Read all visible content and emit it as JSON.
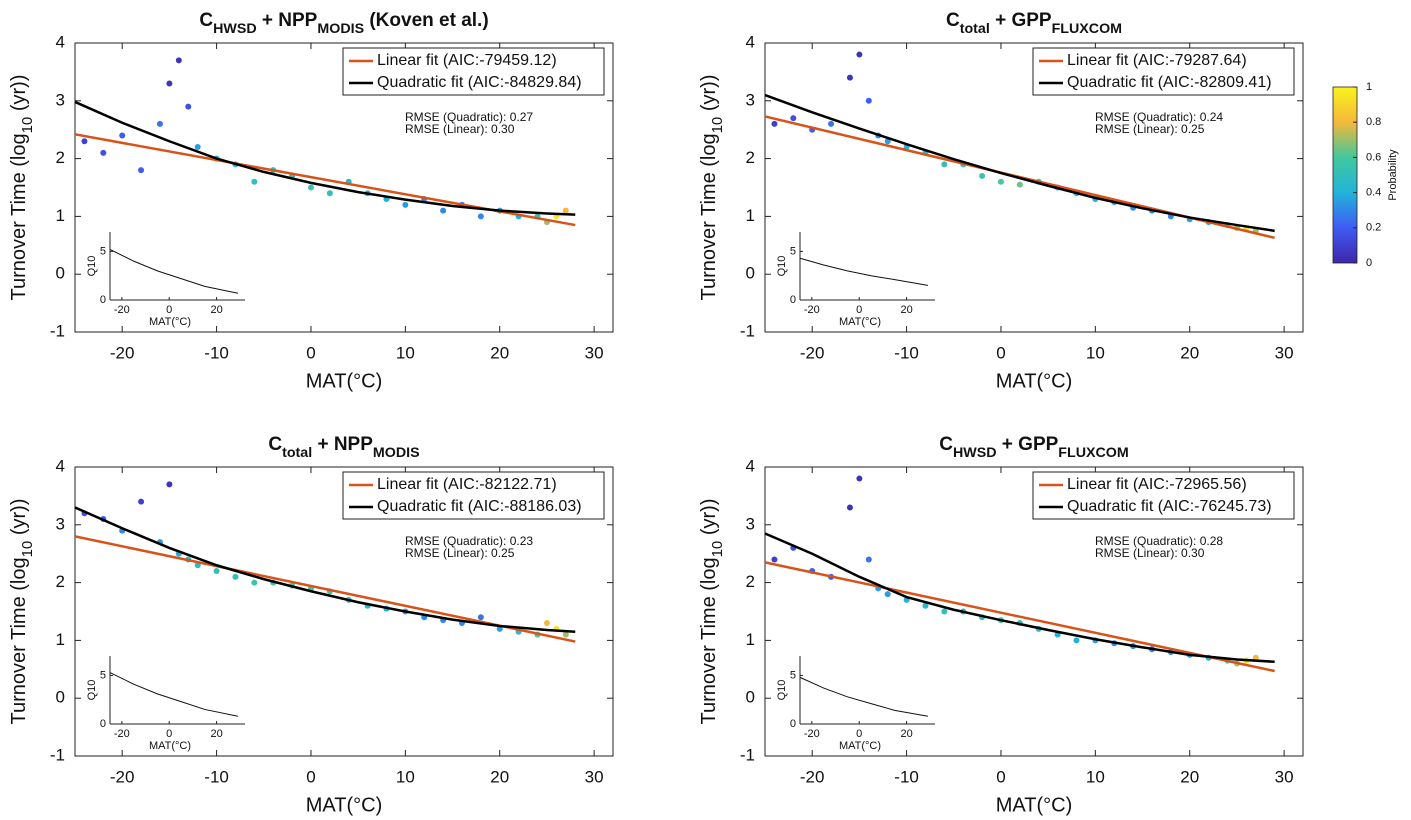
{
  "chart_data": [
    {
      "type": "scatter",
      "title": [
        {
          "text": "C"
        },
        {
          "text": "HWSD",
          "sub": true
        },
        {
          "text": " + NPP"
        },
        {
          "text": "MODIS",
          "sub": true
        },
        {
          "text": " (Koven et al.)"
        }
      ],
      "xlabel": "MAT(°C)",
      "ylabel": [
        {
          "text": "Turnover Time (log"
        },
        {
          "text": "10",
          "sub": true
        },
        {
          "text": " (yr))"
        }
      ],
      "xlim": [
        -25,
        32
      ],
      "ylim": [
        -1,
        4
      ],
      "xticks": [
        -20,
        -10,
        0,
        10,
        20,
        30
      ],
      "yticks": [
        -1,
        0,
        1,
        2,
        3,
        4
      ],
      "points": {
        "x": [
          -24,
          -22,
          -20,
          -18,
          -16,
          -15,
          -14,
          -13,
          -12,
          -10,
          -8,
          -6,
          -4,
          -2,
          0,
          2,
          4,
          6,
          8,
          10,
          12,
          14,
          16,
          18,
          20,
          22,
          24,
          25,
          26,
          27
        ],
        "y": [
          2.3,
          2.1,
          2.4,
          1.8,
          2.6,
          3.3,
          3.7,
          2.9,
          2.2,
          2.0,
          1.9,
          1.6,
          1.8,
          1.7,
          1.5,
          1.4,
          1.6,
          1.4,
          1.3,
          1.2,
          1.3,
          1.1,
          1.2,
          1.0,
          1.1,
          1.0,
          1.0,
          0.9,
          1.0,
          1.1
        ],
        "density": [
          0.1,
          0.15,
          0.2,
          0.2,
          0.25,
          0.05,
          0.05,
          0.15,
          0.35,
          0.4,
          0.45,
          0.5,
          0.45,
          0.5,
          0.55,
          0.5,
          0.45,
          0.4,
          0.4,
          0.35,
          0.3,
          0.3,
          0.25,
          0.3,
          0.35,
          0.4,
          0.55,
          0.7,
          0.95,
          0.8
        ]
      },
      "series": [
        {
          "name": "Linear fit (AIC:-79459.12)",
          "color": "#d95319",
          "x": [
            -25,
            28
          ],
          "values": [
            2.42,
            0.85
          ]
        },
        {
          "name": "Quadratic fit (AIC:-84829.84)",
          "color": "#000000",
          "x": [
            -25,
            -20,
            -15,
            -10,
            -5,
            0,
            5,
            10,
            15,
            20,
            25,
            28
          ],
          "values": [
            2.98,
            2.62,
            2.3,
            2.0,
            1.77,
            1.58,
            1.42,
            1.29,
            1.18,
            1.1,
            1.05,
            1.03
          ]
        }
      ],
      "annotations": [
        "RMSE (Quadratic): 0.27",
        "RMSE (Linear): 0.30"
      ],
      "inset": {
        "type": "line",
        "xlabel": "MAT(°C)",
        "ylabel": "Q10",
        "xlim": [
          -25,
          32
        ],
        "ylim": [
          0,
          7
        ],
        "xticks": [
          -20,
          0,
          20
        ],
        "yticks": [
          0,
          5
        ],
        "x": [
          -25,
          -15,
          -5,
          5,
          15,
          29
        ],
        "values": [
          5.2,
          4.0,
          3.0,
          2.2,
          1.4,
          0.7
        ]
      }
    },
    {
      "type": "scatter",
      "title": [
        {
          "text": "C"
        },
        {
          "text": "total",
          "sub": true
        },
        {
          "text": " + GPP"
        },
        {
          "text": "FLUXCOM",
          "sub": true
        }
      ],
      "xlabel": "MAT(°C)",
      "ylabel": [
        {
          "text": "Turnover Time (log"
        },
        {
          "text": "10",
          "sub": true
        },
        {
          "text": " (yr))"
        }
      ],
      "xlim": [
        -25,
        32
      ],
      "ylim": [
        -1,
        4
      ],
      "xticks": [
        -20,
        -10,
        0,
        10,
        20,
        30
      ],
      "yticks": [
        -1,
        0,
        1,
        2,
        3,
        4
      ],
      "points": {
        "x": [
          -24,
          -22,
          -20,
          -18,
          -16,
          -15,
          -14,
          -13,
          -12,
          -10,
          -8,
          -6,
          -4,
          -2,
          0,
          2,
          4,
          6,
          8,
          10,
          12,
          14,
          16,
          18,
          20,
          22,
          24,
          25,
          26,
          27
        ],
        "y": [
          2.6,
          2.7,
          2.5,
          2.6,
          3.4,
          3.8,
          3.0,
          2.4,
          2.3,
          2.2,
          2.1,
          1.9,
          1.9,
          1.7,
          1.6,
          1.55,
          1.6,
          1.5,
          1.4,
          1.3,
          1.25,
          1.15,
          1.1,
          1.0,
          0.95,
          0.9,
          0.85,
          0.8,
          0.8,
          0.75
        ],
        "density": [
          0.1,
          0.15,
          0.2,
          0.25,
          0.05,
          0.05,
          0.2,
          0.3,
          0.35,
          0.4,
          0.45,
          0.5,
          0.5,
          0.55,
          0.6,
          0.65,
          0.55,
          0.5,
          0.45,
          0.4,
          0.35,
          0.3,
          0.3,
          0.3,
          0.35,
          0.4,
          0.5,
          0.7,
          0.95,
          0.7
        ]
      },
      "series": [
        {
          "name": "Linear fit (AIC:-79287.64)",
          "color": "#d95319",
          "x": [
            -25,
            29
          ],
          "values": [
            2.73,
            0.63
          ]
        },
        {
          "name": "Quadratic fit (AIC:-82809.41)",
          "color": "#000000",
          "x": [
            -25,
            -20,
            -15,
            -10,
            -5,
            0,
            5,
            10,
            15,
            20,
            25,
            29
          ],
          "values": [
            3.1,
            2.8,
            2.52,
            2.25,
            1.99,
            1.75,
            1.53,
            1.32,
            1.14,
            0.98,
            0.85,
            0.75
          ]
        }
      ],
      "annotations": [
        "RMSE (Quadratic): 0.24",
        "RMSE (Linear): 0.25"
      ],
      "inset": {
        "type": "line",
        "xlabel": "MAT(°C)",
        "ylabel": "Q10",
        "xlim": [
          -25,
          32
        ],
        "ylim": [
          0,
          7
        ],
        "xticks": [
          -20,
          0,
          20
        ],
        "yticks": [
          0,
          5
        ],
        "x": [
          -25,
          -15,
          -5,
          5,
          15,
          29
        ],
        "values": [
          4.3,
          3.6,
          3.0,
          2.5,
          2.1,
          1.5
        ]
      }
    },
    {
      "type": "scatter",
      "title": [
        {
          "text": "C"
        },
        {
          "text": "total",
          "sub": true
        },
        {
          "text": " + NPP"
        },
        {
          "text": "MODIS",
          "sub": true
        }
      ],
      "xlabel": "MAT(°C)",
      "ylabel": [
        {
          "text": "Turnover Time (log"
        },
        {
          "text": "10",
          "sub": true
        },
        {
          "text": " (yr))"
        }
      ],
      "xlim": [
        -25,
        32
      ],
      "ylim": [
        -1,
        4
      ],
      "xticks": [
        -20,
        -10,
        0,
        10,
        20,
        30
      ],
      "yticks": [
        -1,
        0,
        1,
        2,
        3,
        4
      ],
      "points": {
        "x": [
          -24,
          -22,
          -20,
          -18,
          -16,
          -15,
          -14,
          -13,
          -12,
          -10,
          -8,
          -6,
          -4,
          -2,
          0,
          2,
          4,
          6,
          8,
          10,
          12,
          14,
          16,
          18,
          20,
          22,
          24,
          25,
          26,
          27
        ],
        "y": [
          3.2,
          3.1,
          2.9,
          3.4,
          2.7,
          3.7,
          2.5,
          2.4,
          2.3,
          2.2,
          2.1,
          2.0,
          2.0,
          1.95,
          1.9,
          1.85,
          1.7,
          1.6,
          1.55,
          1.5,
          1.4,
          1.35,
          1.3,
          1.4,
          1.2,
          1.15,
          1.1,
          1.3,
          1.2,
          1.1
        ],
        "density": [
          0.15,
          0.2,
          0.3,
          0.1,
          0.35,
          0.05,
          0.4,
          0.45,
          0.45,
          0.5,
          0.5,
          0.55,
          0.55,
          0.6,
          0.6,
          0.55,
          0.5,
          0.45,
          0.4,
          0.35,
          0.3,
          0.3,
          0.3,
          0.25,
          0.35,
          0.45,
          0.6,
          0.8,
          0.95,
          0.7
        ]
      },
      "series": [
        {
          "name": "Linear fit (AIC:-82122.71)",
          "color": "#d95319",
          "x": [
            -25,
            28
          ],
          "values": [
            2.8,
            0.98
          ]
        },
        {
          "name": "Quadratic fit (AIC:-88186.03)",
          "color": "#000000",
          "x": [
            -25,
            -20,
            -15,
            -10,
            -5,
            0,
            5,
            10,
            15,
            20,
            25,
            28
          ],
          "values": [
            3.3,
            2.94,
            2.6,
            2.3,
            2.06,
            1.85,
            1.66,
            1.5,
            1.36,
            1.25,
            1.18,
            1.15
          ]
        }
      ],
      "annotations": [
        "RMSE (Quadratic): 0.23",
        "RMSE (Linear): 0.25"
      ],
      "inset": {
        "type": "line",
        "xlabel": "MAT(°C)",
        "ylabel": "Q10",
        "xlim": [
          -25,
          32
        ],
        "ylim": [
          0,
          7
        ],
        "xticks": [
          -20,
          0,
          20
        ],
        "yticks": [
          0,
          5
        ],
        "x": [
          -25,
          -15,
          -5,
          5,
          15,
          29
        ],
        "values": [
          5.3,
          4.1,
          3.1,
          2.3,
          1.5,
          0.8
        ]
      }
    },
    {
      "type": "scatter",
      "title": [
        {
          "text": "C"
        },
        {
          "text": "HWSD",
          "sub": true
        },
        {
          "text": " + GPP"
        },
        {
          "text": "FLUXCOM",
          "sub": true
        }
      ],
      "xlabel": "MAT(°C)",
      "ylabel": [
        {
          "text": "Turnover Time (log"
        },
        {
          "text": "10",
          "sub": true
        },
        {
          "text": " (yr))"
        }
      ],
      "xlim": [
        -25,
        32
      ],
      "ylim": [
        -1,
        4
      ],
      "xticks": [
        -20,
        -10,
        0,
        10,
        20,
        30
      ],
      "yticks": [
        -1,
        0,
        1,
        2,
        3,
        4
      ],
      "points": {
        "x": [
          -24,
          -22,
          -20,
          -18,
          -16,
          -15,
          -14,
          -13,
          -12,
          -10,
          -8,
          -6,
          -4,
          -2,
          0,
          2,
          4,
          6,
          8,
          10,
          12,
          14,
          16,
          18,
          20,
          22,
          24,
          25,
          26,
          27
        ],
        "y": [
          2.4,
          2.6,
          2.2,
          2.1,
          3.3,
          3.8,
          2.4,
          1.9,
          1.8,
          1.7,
          1.6,
          1.5,
          1.5,
          1.4,
          1.35,
          1.3,
          1.2,
          1.1,
          1.0,
          1.0,
          0.95,
          0.9,
          0.85,
          0.8,
          0.75,
          0.7,
          0.65,
          0.6,
          0.65,
          0.7
        ],
        "density": [
          0.1,
          0.15,
          0.2,
          0.2,
          0.05,
          0.05,
          0.25,
          0.35,
          0.35,
          0.4,
          0.45,
          0.5,
          0.45,
          0.5,
          0.55,
          0.5,
          0.45,
          0.4,
          0.4,
          0.35,
          0.3,
          0.3,
          0.25,
          0.3,
          0.35,
          0.4,
          0.55,
          0.7,
          0.95,
          0.8
        ]
      },
      "series": [
        {
          "name": "Linear fit (AIC:-72965.56)",
          "color": "#d95319",
          "x": [
            -25,
            29
          ],
          "values": [
            2.35,
            0.47
          ]
        },
        {
          "name": "Quadratic fit (AIC:-76245.73)",
          "color": "#000000",
          "x": [
            -25,
            -20,
            -15,
            -10,
            -5,
            0,
            5,
            10,
            15,
            20,
            25,
            29
          ],
          "values": [
            2.85,
            2.5,
            2.1,
            1.75,
            1.53,
            1.35,
            1.18,
            1.02,
            0.88,
            0.75,
            0.67,
            0.63
          ]
        }
      ],
      "annotations": [
        "RMSE (Quadratic): 0.28",
        "RMSE (Linear): 0.30"
      ],
      "inset": {
        "type": "line",
        "xlabel": "MAT(°C)",
        "ylabel": "Q10",
        "xlim": [
          -25,
          32
        ],
        "ylim": [
          0,
          7
        ],
        "xticks": [
          -20,
          0,
          20
        ],
        "yticks": [
          0,
          5
        ],
        "x": [
          -25,
          -15,
          -5,
          5,
          15,
          29
        ],
        "values": [
          4.8,
          3.7,
          2.8,
          2.1,
          1.4,
          0.8
        ]
      }
    }
  ],
  "colorbar": {
    "label": "Probability",
    "lim": [
      0,
      1
    ],
    "ticks": [
      0,
      0.2,
      0.4,
      0.6,
      0.8,
      1
    ],
    "colors": [
      "#3e26a8",
      "#3f5cf4",
      "#22b3da",
      "#41c89c",
      "#f5b83a",
      "#f9f31b"
    ]
  }
}
